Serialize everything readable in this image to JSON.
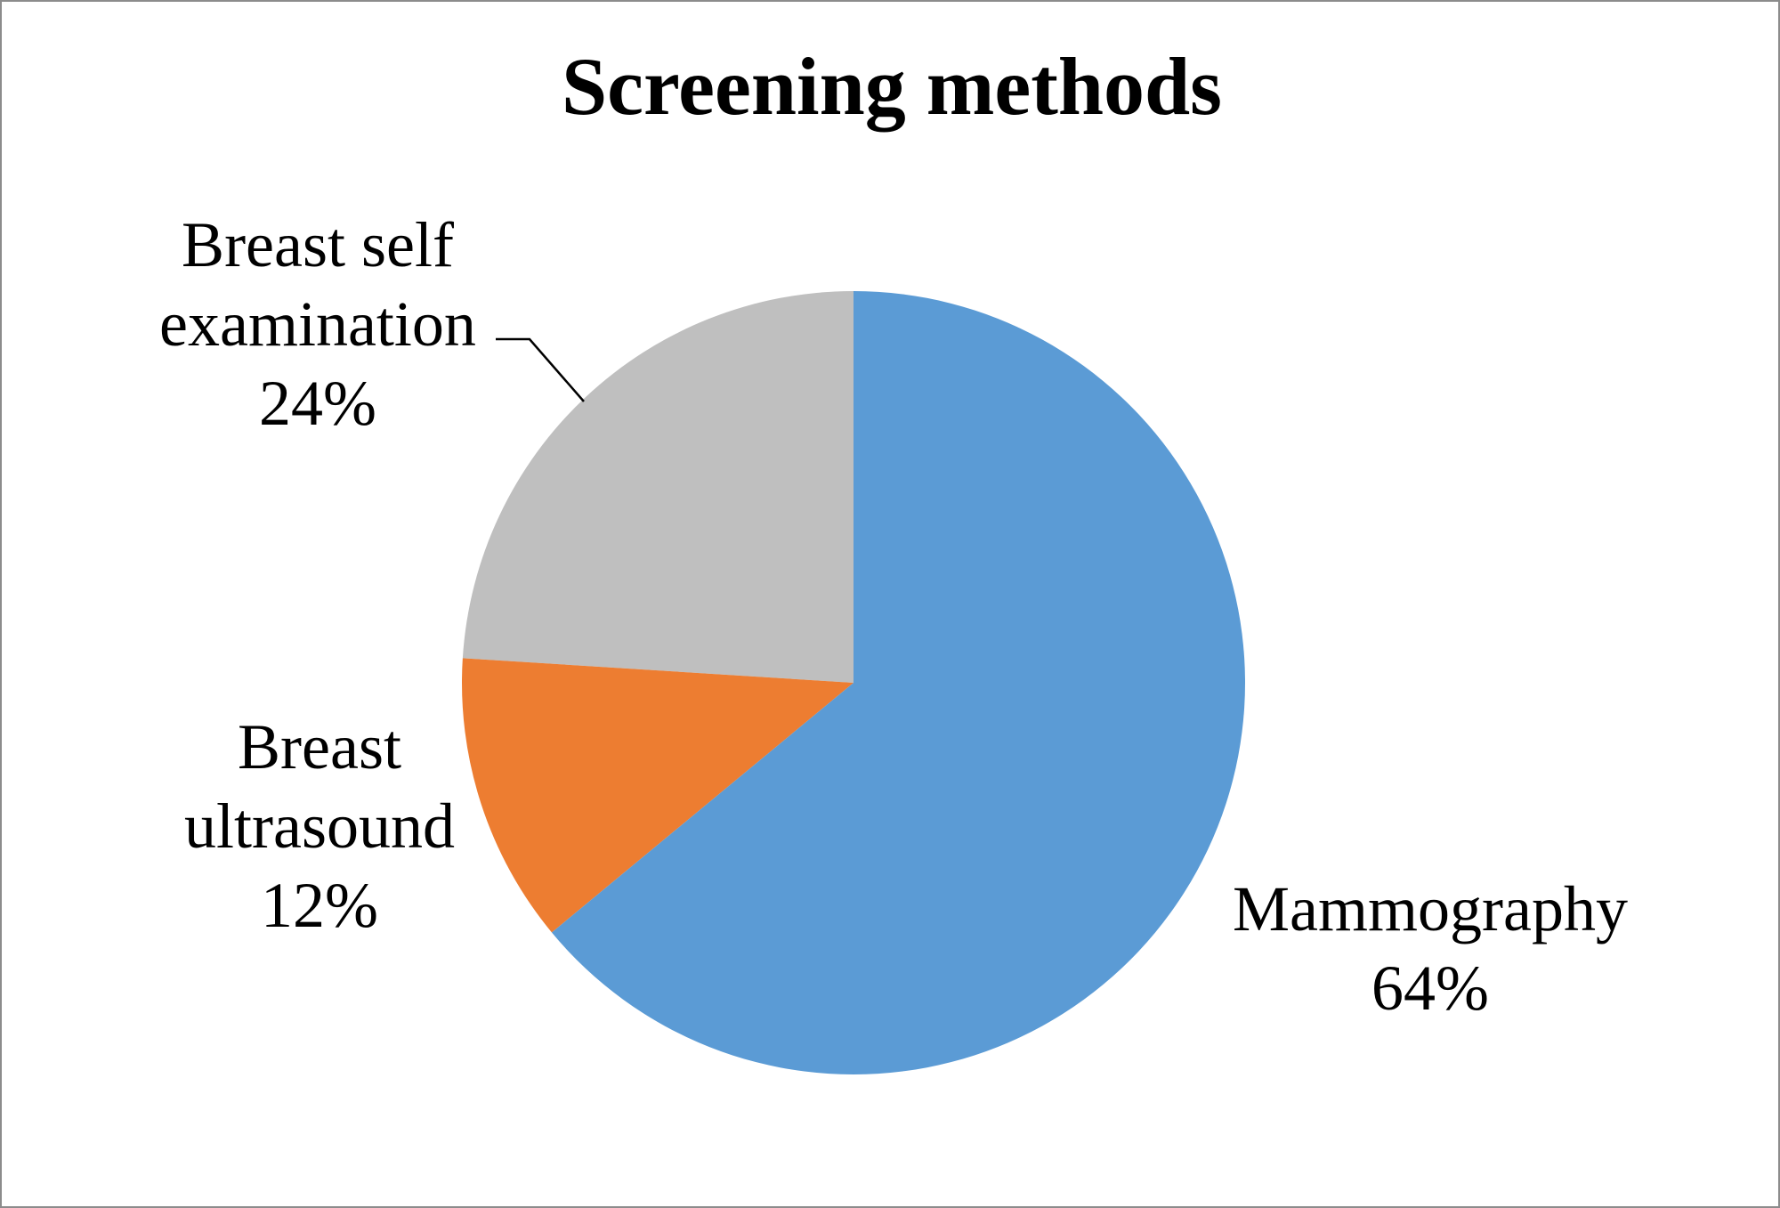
{
  "chart_data": {
    "type": "pie",
    "title": "Screening methods",
    "categories": [
      "Mammography",
      "Breast ultrasound",
      "Breast self examination"
    ],
    "values": [
      64,
      12,
      24
    ],
    "value_labels": [
      "64%",
      "12%",
      "24%"
    ],
    "colors": [
      "#5b9bd5",
      "#ed7d31",
      "#bfbfbf"
    ]
  }
}
